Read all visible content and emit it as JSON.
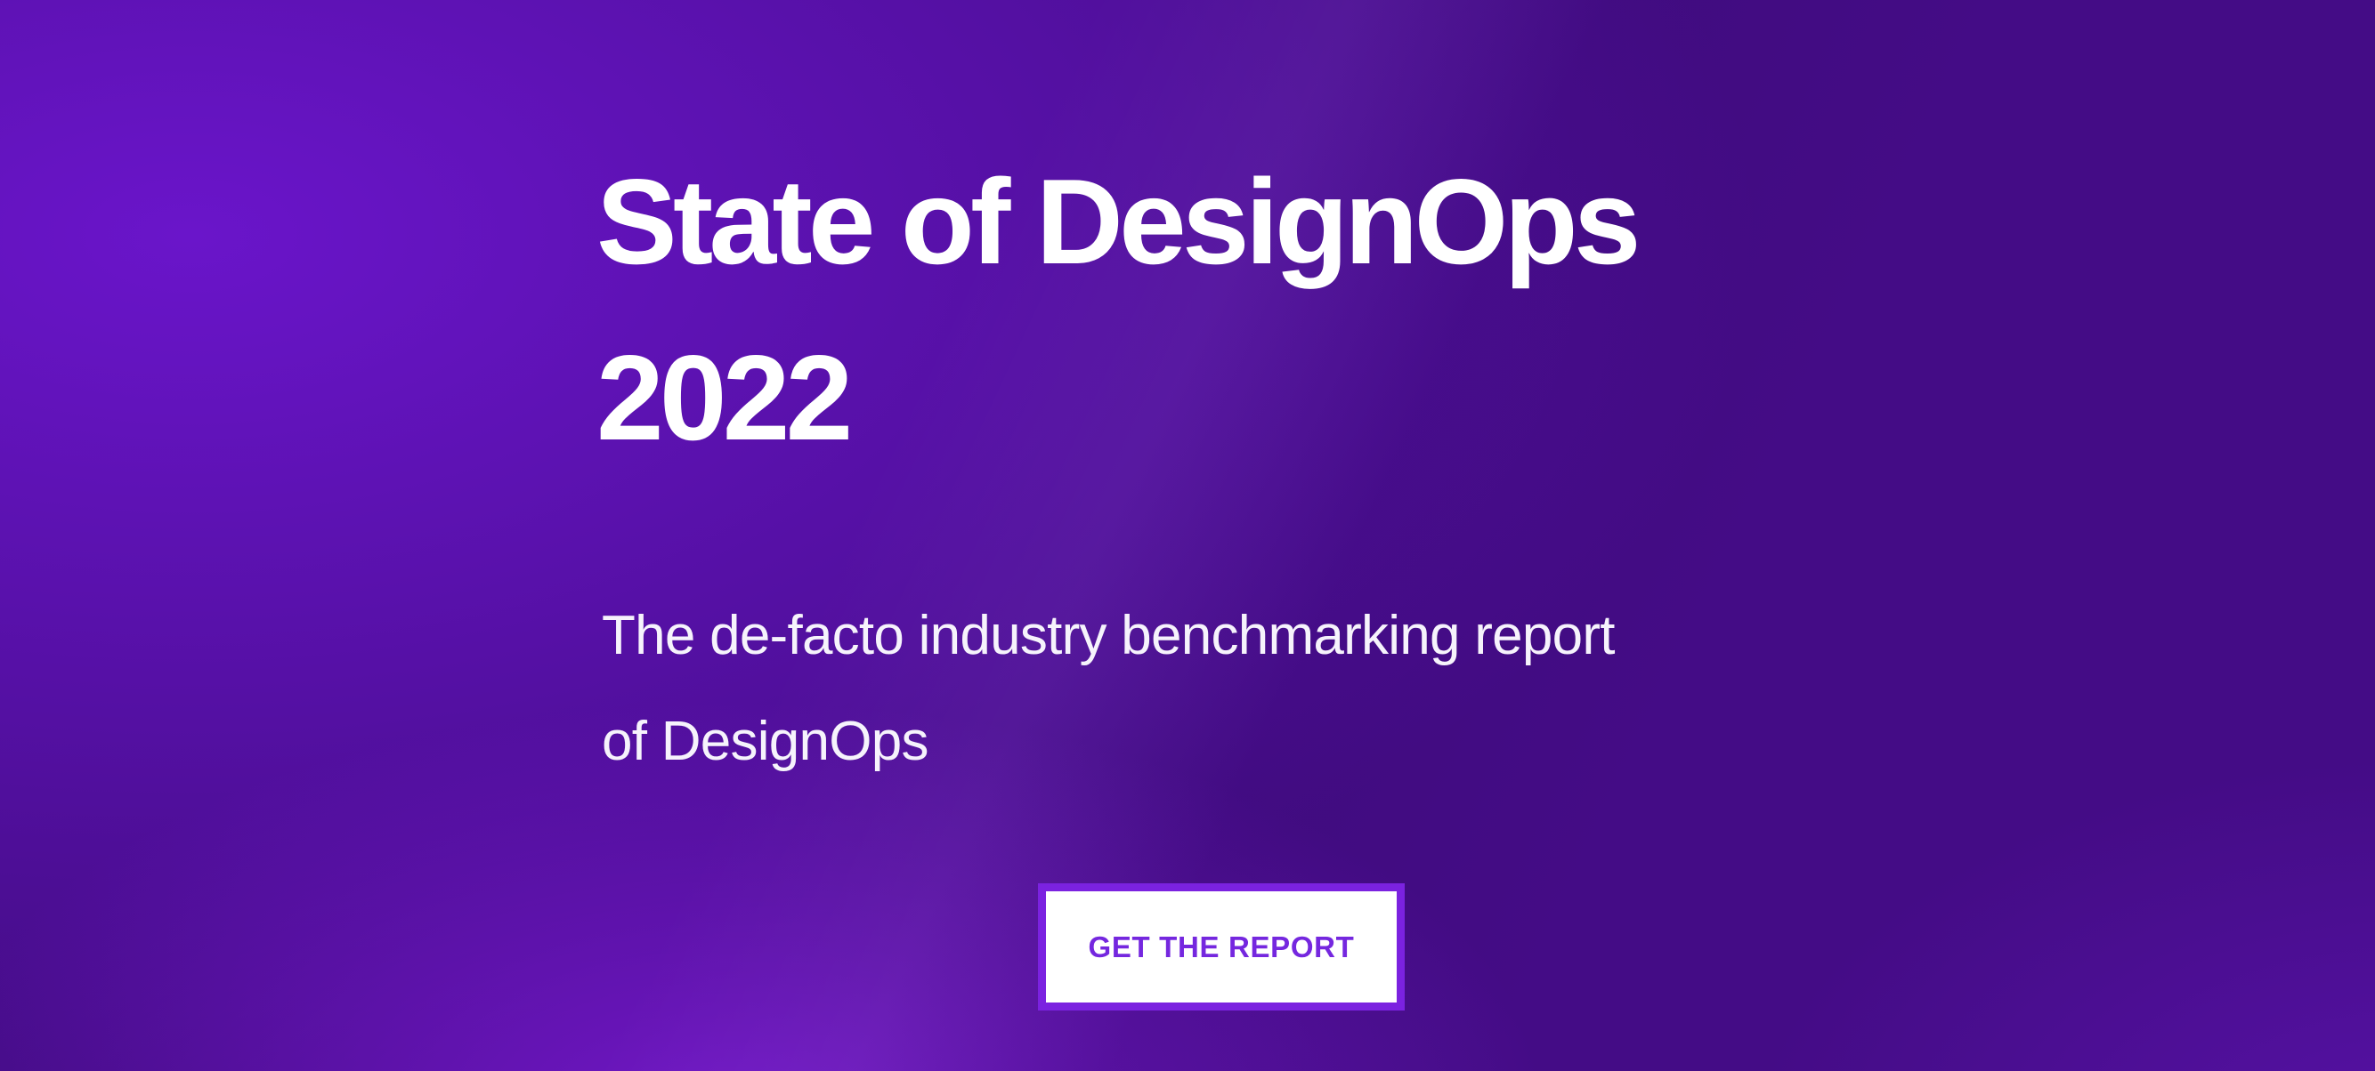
{
  "hero": {
    "title": {
      "line1": "State of DesignOps",
      "line2": "2022"
    },
    "subtitle": {
      "line1": "The de-facto industry benchmarking report",
      "line2": "of DesignOps"
    },
    "cta": {
      "label": "GET THE REPORT"
    }
  },
  "colors": {
    "background_base_indigo": "#440C86",
    "background_bright_violet_topleft": "#6A15CA",
    "background_bright_violet_bottom": "#7418CA",
    "background_bottomright_glow": "#5812A8",
    "title_text": "#FFFFFF",
    "subtitle_text": "#F6F3FC",
    "button_background": "#FFFFFF",
    "button_border": "#7B22E0",
    "button_text": "#7527DF"
  }
}
